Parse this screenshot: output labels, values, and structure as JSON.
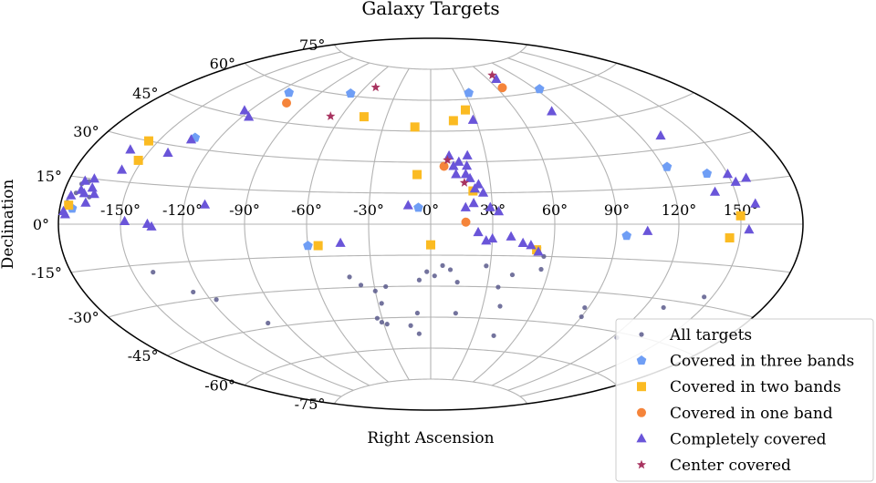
{
  "chart_data": {
    "type": "scatter",
    "projection": "aitoff",
    "title": "Galaxy Targets",
    "xlabel": "Right Ascension",
    "ylabel": "Declination",
    "grid": true,
    "legend_position": "bottom-right",
    "x_ticks": [
      "-150°",
      "-120°",
      "-90°",
      "-60°",
      "-30°",
      "0°",
      "30°",
      "60°",
      "90°",
      "120°",
      "150°"
    ],
    "x_tick_values": [
      -150,
      -120,
      -90,
      -60,
      -30,
      0,
      30,
      60,
      90,
      120,
      150
    ],
    "y_ticks": [
      "-75°",
      "-60°",
      "-45°",
      "-30°",
      "-15°",
      "0°",
      "15°",
      "30°",
      "45°",
      "60°",
      "75°"
    ],
    "y_tick_values": [
      -75,
      -60,
      -45,
      -30,
      -15,
      0,
      15,
      30,
      45,
      60,
      75
    ],
    "series": [
      {
        "name": "All targets",
        "marker": "dot",
        "color": "#5a5a8c",
        "points": [
          [
            -173,
            13
          ],
          [
            -174,
            10
          ],
          [
            -177,
            7
          ],
          [
            -178,
            4
          ],
          [
            -167,
            9
          ],
          [
            -170,
            14
          ],
          [
            -140,
            -18
          ],
          [
            -126,
            -27
          ],
          [
            -117,
            -31
          ],
          [
            -100,
            -43
          ],
          [
            -42,
            -25
          ],
          [
            -37,
            -29
          ],
          [
            -30,
            -32
          ],
          [
            -33,
            -45
          ],
          [
            -31,
            -47
          ],
          [
            -28,
            -48
          ],
          [
            -28,
            -38
          ],
          [
            -24,
            -30
          ],
          [
            -6,
            -27
          ],
          [
            -2,
            -23
          ],
          [
            2,
            -25
          ],
          [
            6,
            -20
          ],
          [
            10,
            -22
          ],
          [
            14,
            -28
          ],
          [
            15,
            -43
          ],
          [
            28,
            -20
          ],
          [
            36,
            -30
          ],
          [
            40,
            -39
          ],
          [
            42,
            -24
          ],
          [
            53,
            -11
          ],
          [
            56,
            -15
          ],
          [
            56,
            -21
          ],
          [
            88,
            -37
          ],
          [
            90,
            -41
          ],
          [
            123,
            -47
          ],
          [
            130,
            -33
          ],
          [
            146,
            -27
          ],
          [
            -8,
            -43
          ],
          [
            -13,
            -49
          ],
          [
            44,
            -53
          ],
          [
            -8,
            -53
          ]
        ]
      },
      {
        "name": "Covered in three bands",
        "marker": "pentagon",
        "color": "#6f9ef5",
        "points": [
          [
            -112,
            57
          ],
          [
            -67,
            61
          ],
          [
            -133,
            34
          ],
          [
            -174,
            5
          ],
          [
            -6,
            8
          ],
          [
            33,
            63
          ],
          [
            -60,
            -10
          ],
          [
            95,
            -5
          ],
          [
            122,
            23
          ],
          [
            140,
            19
          ],
          [
            93,
            61
          ]
        ]
      },
      {
        "name": "Covered in two bands",
        "marker": "square",
        "color": "#fbbb22",
        "points": [
          [
            -45,
            51
          ],
          [
            -10,
            47
          ],
          [
            15,
            50
          ],
          [
            25,
            55
          ],
          [
            -7,
            24
          ],
          [
            21,
            16
          ],
          [
            -155,
            30
          ],
          [
            -152,
            23
          ],
          [
            -176,
            6
          ],
          [
            -55,
            -10
          ],
          [
            0,
            -10
          ],
          [
            150,
            3
          ],
          [
            145,
            -5
          ],
          [
            52,
            -12
          ]
        ]
      },
      {
        "name": "Covered in one band",
        "marker": "circle",
        "color": "#f5843a",
        "points": [
          [
            -104,
            53
          ],
          [
            7,
            28
          ],
          [
            17,
            1
          ],
          [
            65,
            64
          ]
        ]
      },
      {
        "name": "Completely covered",
        "marker": "triangle",
        "color": "#6a55d9",
        "points": [
          [
            -123,
            47
          ],
          [
            -116,
            45
          ],
          [
            -134,
            33
          ],
          [
            -140,
            27
          ],
          [
            -160,
            26
          ],
          [
            -157,
            19
          ],
          [
            -168,
            15
          ],
          [
            -172,
            14
          ],
          [
            -167,
            12
          ],
          [
            -170,
            10
          ],
          [
            -172,
            11
          ],
          [
            -178,
            4
          ],
          [
            -165,
            10
          ],
          [
            -176,
            9
          ],
          [
            -168,
            7
          ],
          [
            -177,
            3
          ],
          [
            -148,
            1
          ],
          [
            -135,
            -1
          ],
          [
            -110,
            8
          ],
          [
            -137,
            0
          ],
          [
            -44,
            -9
          ],
          [
            -11,
            9
          ],
          [
            17,
            8
          ],
          [
            21,
            10
          ],
          [
            26,
            15
          ],
          [
            24,
            19
          ],
          [
            20,
            22
          ],
          [
            18,
            24
          ],
          [
            22,
            17
          ],
          [
            13,
            24
          ],
          [
            12,
            28
          ],
          [
            15,
            30
          ],
          [
            19,
            28
          ],
          [
            20,
            33
          ],
          [
            10,
            33
          ],
          [
            28,
            50
          ],
          [
            23,
            -4
          ],
          [
            27,
            -8
          ],
          [
            30,
            -7
          ],
          [
            39,
            -6
          ],
          [
            45,
            -9
          ],
          [
            49,
            -10
          ],
          [
            53,
            -13
          ],
          [
            105,
            -3
          ],
          [
            83,
            51
          ],
          [
            131,
            35
          ],
          [
            150,
            18
          ],
          [
            152,
            15
          ],
          [
            158,
            16
          ],
          [
            158,
            7
          ],
          [
            154,
            -2
          ],
          [
            140,
            12
          ],
          [
            68,
            68
          ],
          [
            33,
            6
          ],
          [
            29,
            8
          ]
        ]
      },
      {
        "name": "Center covered",
        "marker": "star",
        "color": "#a83460",
        "points": [
          [
            -51,
            65
          ],
          [
            -67,
            50
          ],
          [
            69,
            70
          ],
          [
            9,
            31
          ],
          [
            17,
            20
          ]
        ]
      }
    ],
    "legend_entries": [
      "All targets",
      "Covered in three bands",
      "Covered in two bands",
      "Covered in one band",
      "Completely covered",
      "Center covered"
    ]
  }
}
